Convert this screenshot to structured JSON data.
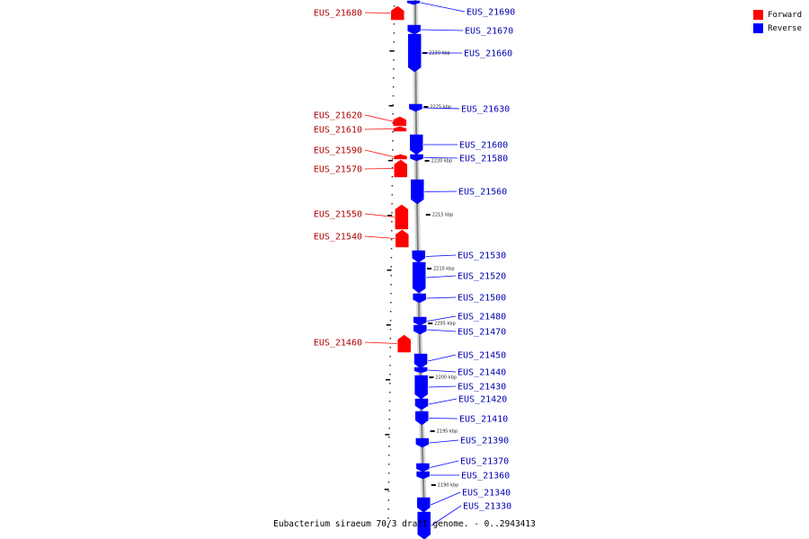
{
  "caption": "Eubacterium siraeum 70/3 draft genome. - 0..2943413",
  "colors": {
    "forward": "#ff0000",
    "reverse": "#0000ff",
    "backbone": "#808080"
  },
  "legend": [
    {
      "label": "Forward",
      "color": "#ff0000"
    },
    {
      "label": "Reverse",
      "color": "#0000ff"
    }
  ],
  "ticks": [
    "2230 kbp",
    "2225 kbp",
    "2220 kbp",
    "2215 kbp",
    "2210 kbp",
    "2205 kbp",
    "2200 kbp",
    "2195 kbp",
    "2190 kbp"
  ],
  "genes": [
    {
      "id": "EUS_21690",
      "strand": "reverse"
    },
    {
      "id": "EUS_21680",
      "strand": "forward"
    },
    {
      "id": "EUS_21670",
      "strand": "reverse"
    },
    {
      "id": "EUS_21660",
      "strand": "reverse"
    },
    {
      "id": "EUS_21630",
      "strand": "reverse"
    },
    {
      "id": "EUS_21620",
      "strand": "forward"
    },
    {
      "id": "EUS_21610",
      "strand": "forward"
    },
    {
      "id": "EUS_21600",
      "strand": "reverse"
    },
    {
      "id": "EUS_21590",
      "strand": "forward"
    },
    {
      "id": "EUS_21580",
      "strand": "reverse"
    },
    {
      "id": "EUS_21570",
      "strand": "forward"
    },
    {
      "id": "EUS_21560",
      "strand": "reverse"
    },
    {
      "id": "EUS_21550",
      "strand": "forward"
    },
    {
      "id": "EUS_21540",
      "strand": "forward"
    },
    {
      "id": "EUS_21530",
      "strand": "reverse"
    },
    {
      "id": "EUS_21520",
      "strand": "reverse"
    },
    {
      "id": "EUS_21500",
      "strand": "reverse"
    },
    {
      "id": "EUS_21480",
      "strand": "reverse"
    },
    {
      "id": "EUS_21470",
      "strand": "reverse"
    },
    {
      "id": "EUS_21460",
      "strand": "forward"
    },
    {
      "id": "EUS_21450",
      "strand": "reverse"
    },
    {
      "id": "EUS_21440",
      "strand": "reverse"
    },
    {
      "id": "EUS_21430",
      "strand": "reverse"
    },
    {
      "id": "EUS_21420",
      "strand": "reverse"
    },
    {
      "id": "EUS_21410",
      "strand": "reverse"
    },
    {
      "id": "EUS_21390",
      "strand": "reverse"
    },
    {
      "id": "EUS_21370",
      "strand": "reverse"
    },
    {
      "id": "EUS_21360",
      "strand": "reverse"
    },
    {
      "id": "EUS_21340",
      "strand": "reverse"
    },
    {
      "id": "EUS_21330",
      "strand": "reverse"
    }
  ]
}
